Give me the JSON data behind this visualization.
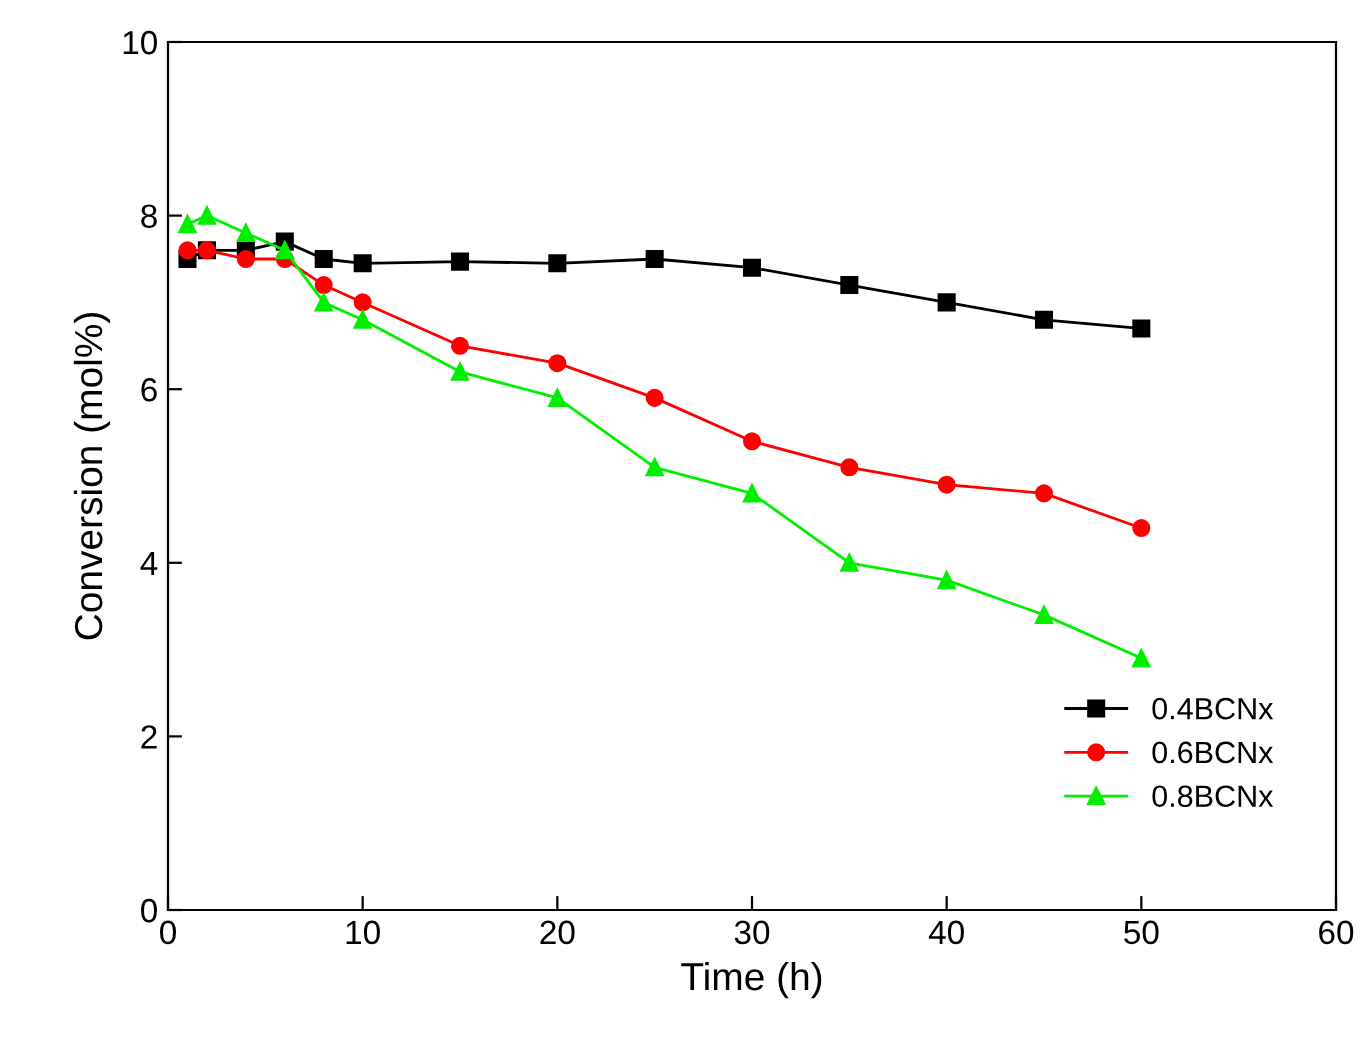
{
  "chart_data": {
    "type": "line",
    "xlabel": "Time (h)",
    "ylabel": "Conversion (mol%)",
    "x": [
      1,
      2,
      4,
      6,
      8,
      10,
      15,
      20,
      25,
      30,
      35,
      40,
      45,
      50
    ],
    "series": [
      {
        "name": "0.4BCNx",
        "color": "#000000",
        "marker": "square",
        "values": [
          7.5,
          7.6,
          7.6,
          7.7,
          7.5,
          7.45,
          7.47,
          7.45,
          7.5,
          7.4,
          7.2,
          7.0,
          6.8,
          6.7
        ]
      },
      {
        "name": "0.6BCNx",
        "color": "#ff0000",
        "marker": "circle",
        "values": [
          7.6,
          7.6,
          7.5,
          7.5,
          7.2,
          7.0,
          6.5,
          6.3,
          5.9,
          5.4,
          5.1,
          4.9,
          4.8,
          4.4
        ]
      },
      {
        "name": "0.8BCNx",
        "color": "#00ee00",
        "marker": "triangle",
        "values": [
          7.9,
          8.0,
          7.8,
          7.6,
          7.0,
          6.8,
          6.2,
          5.9,
          5.1,
          4.8,
          4.0,
          3.8,
          3.4,
          2.9
        ]
      }
    ],
    "xlim": [
      0,
      60
    ],
    "xticks": [
      0,
      10,
      20,
      30,
      40,
      50,
      60
    ],
    "ylim": [
      0,
      10
    ],
    "yticks": [
      0,
      2,
      4,
      6,
      8,
      10
    ],
    "grid": false,
    "legend": "bottom right",
    "line_style": "solid"
  }
}
